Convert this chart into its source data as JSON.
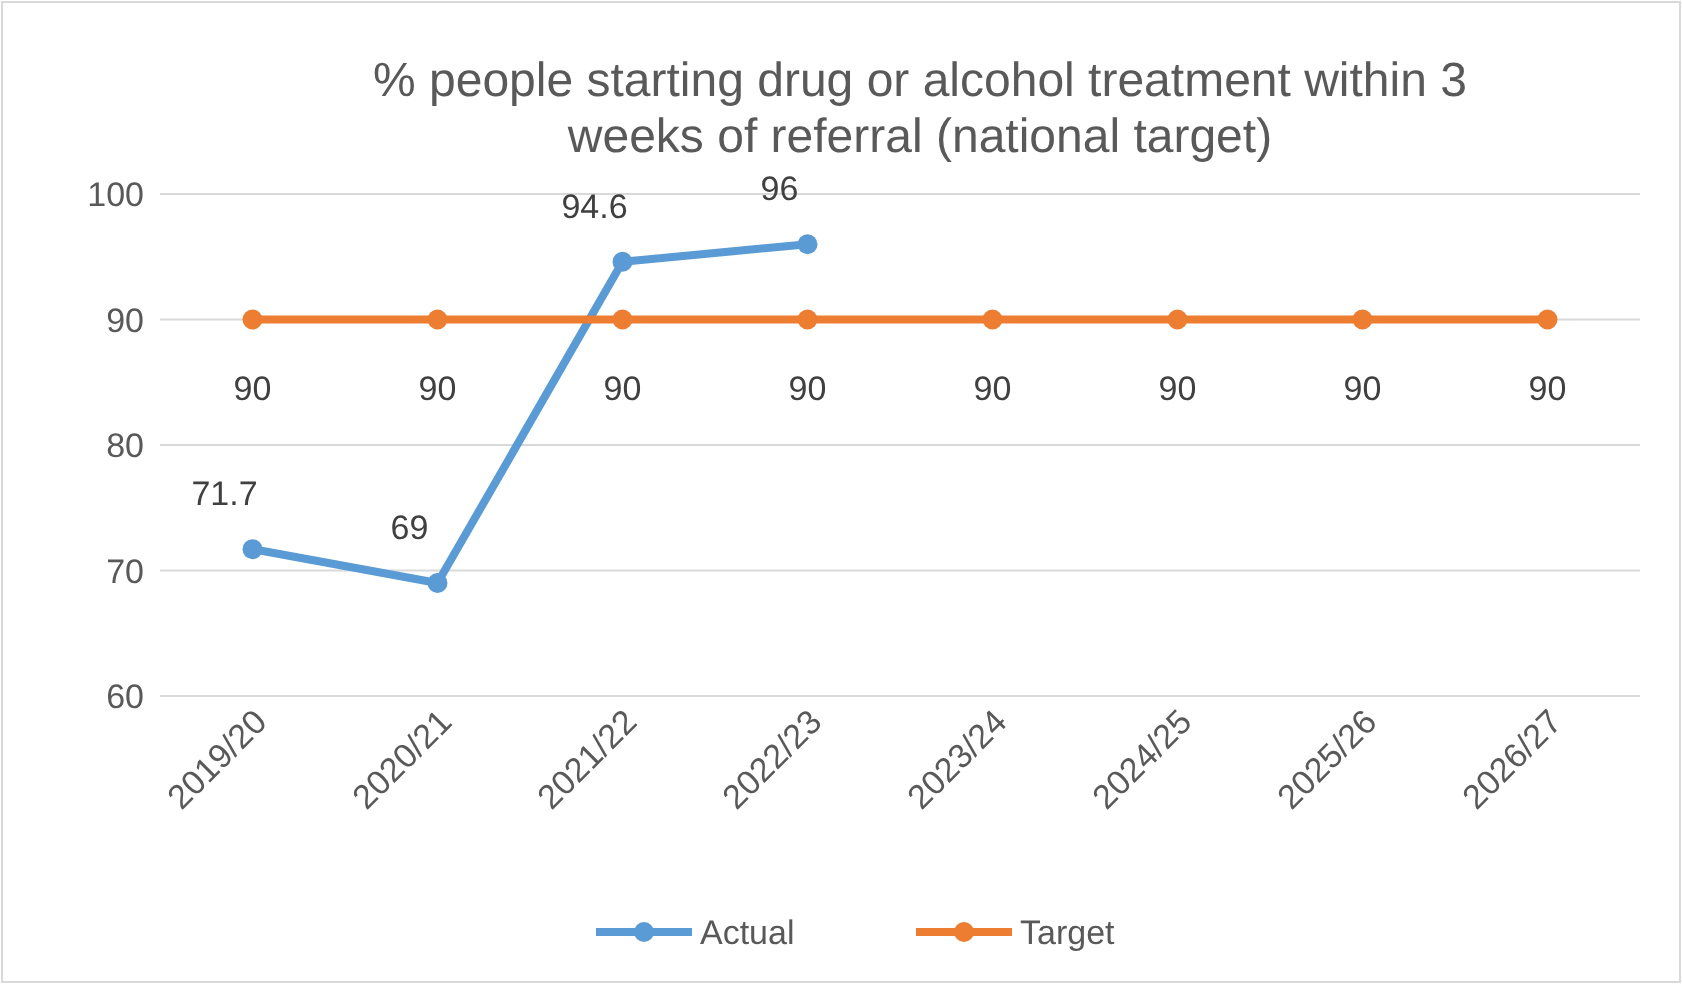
{
  "chart_data": {
    "type": "line",
    "title": "% people starting drug or alcohol treatment within 3 weeks of referral (national target)",
    "categories": [
      "2019/20",
      "2020/21",
      "2021/22",
      "2022/23",
      "2023/24",
      "2024/25",
      "2025/26",
      "2026/27"
    ],
    "series": [
      {
        "name": "Actual",
        "color": "#5b9bd5",
        "values": [
          71.7,
          69,
          94.6,
          96,
          null,
          null,
          null,
          null
        ]
      },
      {
        "name": "Target",
        "color": "#ed7d31",
        "values": [
          90,
          90,
          90,
          90,
          90,
          90,
          90,
          90
        ]
      }
    ],
    "ylim": [
      60,
      100
    ],
    "yticks": [
      60,
      70,
      80,
      90,
      100
    ],
    "grid": "y",
    "legend": "bottom",
    "marker": "circle",
    "line_style": "solid",
    "data_labels": true
  }
}
